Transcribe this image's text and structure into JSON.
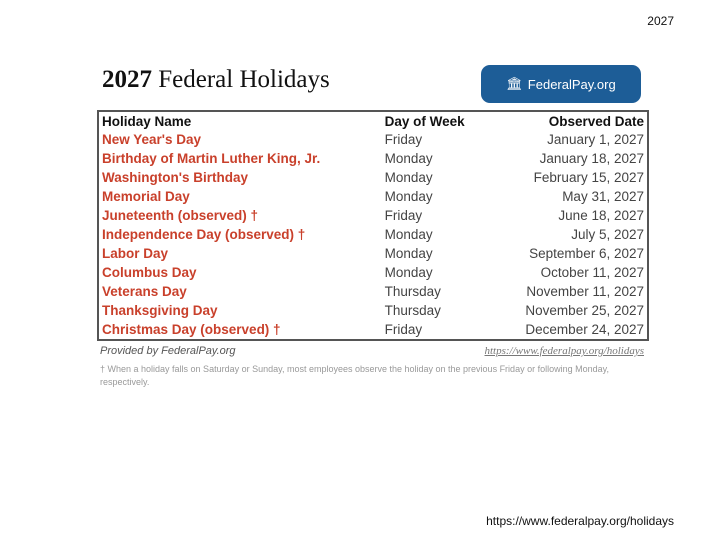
{
  "header": {
    "year": "2027",
    "title_bold": "2027",
    "title_rest": " Federal Holidays",
    "logo_text": "FederalPay.org",
    "logo_icon": "bank-building-icon",
    "logo_color": "#1d5d97"
  },
  "table": {
    "columns": [
      "Holiday Name",
      "Day of Week",
      "Observed Date"
    ],
    "rows": [
      [
        "New Year's Day",
        "Friday",
        "January 1, 2027"
      ],
      [
        "Birthday of Martin Luther King, Jr.",
        "Monday",
        "January 18, 2027"
      ],
      [
        "Washington's Birthday",
        "Monday",
        "February 15, 2027"
      ],
      [
        "Memorial Day",
        "Monday",
        "May 31, 2027"
      ],
      [
        "Juneteenth (observed) †",
        "Friday",
        "June 18, 2027"
      ],
      [
        "Independence Day (observed) †",
        "Monday",
        "July 5, 2027"
      ],
      [
        "Labor Day",
        "Monday",
        "September 6, 2027"
      ],
      [
        "Columbus Day",
        "Monday",
        "October 11, 2027"
      ],
      [
        "Veterans Day",
        "Thursday",
        "November 11, 2027"
      ],
      [
        "Thanksgiving Day",
        "Thursday",
        "November 25, 2027"
      ],
      [
        "Christmas Day (observed) †",
        "Friday",
        "December 24, 2027"
      ]
    ]
  },
  "footer": {
    "provided": "Provided by FederalPay.org",
    "link": "https://www.federalpay.org/holidays",
    "note": "† When a holiday falls on Saturday or Sunday, most employees observe the holiday on the previous Friday or following Monday, respectively.",
    "bottom_url": "https://www.federalpay.org/holidays"
  }
}
